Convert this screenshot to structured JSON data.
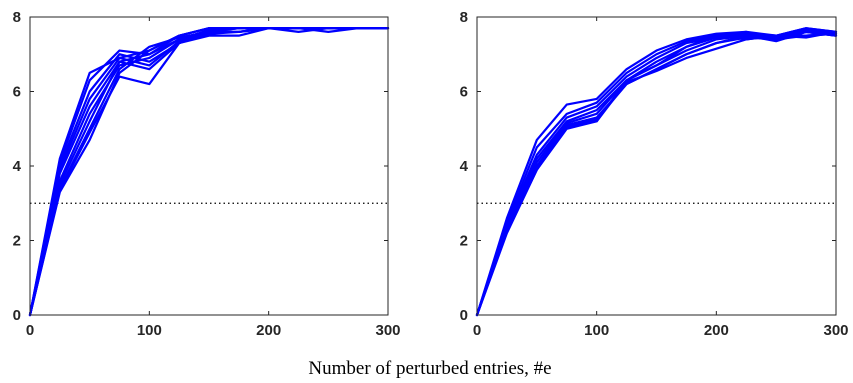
{
  "xlabel": "Number of perturbed entries, #e",
  "colors": {
    "series": "#0000ff",
    "reference": "#000000",
    "axes": "#262626"
  },
  "chart_data": [
    {
      "type": "line",
      "xlim": [
        0,
        300
      ],
      "ylim": [
        0,
        8
      ],
      "xticks": [
        0,
        100,
        200,
        300
      ],
      "yticks": [
        0,
        2,
        4,
        6,
        8
      ],
      "grid": false,
      "reference_line": {
        "y": 3,
        "style": "dotted"
      },
      "x": [
        0,
        25,
        50,
        75,
        100,
        125,
        150,
        175,
        200,
        225,
        250,
        275,
        300
      ],
      "series": [
        {
          "values": [
            0,
            4.2,
            6.5,
            6.9,
            7.1,
            7.5,
            7.7,
            7.7,
            7.7,
            7.7,
            7.7,
            7.7,
            7.7
          ]
        },
        {
          "values": [
            0,
            4.1,
            6.3,
            7.1,
            7.0,
            7.4,
            7.65,
            7.7,
            7.7,
            7.7,
            7.7,
            7.7,
            7.7
          ]
        },
        {
          "values": [
            0,
            4.0,
            6.0,
            7.0,
            6.8,
            7.3,
            7.6,
            7.6,
            7.7,
            7.7,
            7.7,
            7.7,
            7.7
          ]
        },
        {
          "values": [
            0,
            3.9,
            5.8,
            6.9,
            6.7,
            7.35,
            7.55,
            7.6,
            7.7,
            7.6,
            7.7,
            7.7,
            7.7
          ]
        },
        {
          "values": [
            0,
            3.8,
            5.6,
            6.8,
            6.6,
            7.3,
            7.5,
            7.5,
            7.7,
            7.7,
            7.6,
            7.7,
            7.7
          ]
        },
        {
          "values": [
            0,
            3.6,
            5.4,
            6.7,
            6.9,
            7.4,
            7.6,
            7.7,
            7.7,
            7.7,
            7.7,
            7.7,
            7.7
          ]
        },
        {
          "values": [
            0,
            3.5,
            5.2,
            6.8,
            7.0,
            7.5,
            7.7,
            7.7,
            7.7,
            7.7,
            7.7,
            7.7,
            7.7
          ]
        },
        {
          "values": [
            0,
            3.4,
            5.0,
            6.6,
            7.2,
            7.45,
            7.6,
            7.7,
            7.7,
            7.7,
            7.7,
            7.7,
            7.7
          ]
        },
        {
          "values": [
            0,
            3.35,
            4.9,
            6.4,
            6.2,
            7.3,
            7.6,
            7.6,
            7.7,
            7.7,
            7.7,
            7.7,
            7.7
          ]
        },
        {
          "values": [
            0,
            3.3,
            4.7,
            6.5,
            7.1,
            7.5,
            7.7,
            7.7,
            7.7,
            7.7,
            7.7,
            7.7,
            7.7
          ]
        }
      ]
    },
    {
      "type": "line",
      "xlim": [
        0,
        300
      ],
      "ylim": [
        0,
        8
      ],
      "xticks": [
        0,
        100,
        200,
        300
      ],
      "yticks": [
        0,
        2,
        4,
        6,
        8
      ],
      "grid": false,
      "reference_line": {
        "y": 3,
        "style": "dotted"
      },
      "x": [
        0,
        25,
        50,
        75,
        100,
        125,
        150,
        175,
        200,
        225,
        250,
        275,
        300
      ],
      "series": [
        {
          "values": [
            0,
            2.6,
            4.7,
            5.65,
            5.8,
            6.6,
            7.1,
            7.4,
            7.55,
            7.6,
            7.5,
            7.7,
            7.6
          ]
        },
        {
          "values": [
            0,
            2.5,
            4.5,
            5.4,
            5.7,
            6.5,
            7.0,
            7.35,
            7.5,
            7.6,
            7.4,
            7.6,
            7.5
          ]
        },
        {
          "values": [
            0,
            2.45,
            4.3,
            5.3,
            5.6,
            6.4,
            6.9,
            7.3,
            7.45,
            7.55,
            7.5,
            7.7,
            7.6
          ]
        },
        {
          "values": [
            0,
            2.4,
            4.2,
            5.2,
            5.5,
            6.3,
            6.8,
            7.2,
            7.5,
            7.4,
            7.5,
            7.5,
            7.55
          ]
        },
        {
          "values": [
            0,
            2.35,
            4.1,
            5.15,
            5.4,
            6.3,
            6.7,
            7.1,
            7.4,
            7.5,
            7.45,
            7.6,
            7.5
          ]
        },
        {
          "values": [
            0,
            2.3,
            4.0,
            5.1,
            5.3,
            6.2,
            6.6,
            7.0,
            7.3,
            7.45,
            7.4,
            7.5,
            7.55
          ]
        },
        {
          "values": [
            0,
            2.3,
            3.95,
            5.1,
            5.2,
            6.25,
            6.55,
            6.9,
            7.15,
            7.4,
            7.5,
            7.45,
            7.6
          ]
        },
        {
          "values": [
            0,
            2.25,
            3.9,
            5.05,
            5.25,
            6.2,
            6.6,
            7.0,
            7.3,
            7.5,
            7.35,
            7.6,
            7.5
          ]
        },
        {
          "values": [
            0,
            2.2,
            3.9,
            5.0,
            5.2,
            6.3,
            6.7,
            7.2,
            7.45,
            7.55,
            7.45,
            7.65,
            7.55
          ]
        }
      ]
    }
  ]
}
